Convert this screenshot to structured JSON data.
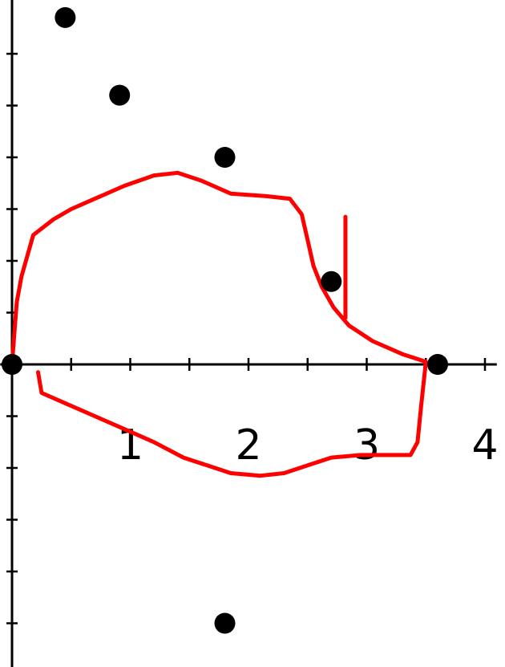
{
  "chart_data": {
    "type": "scatter",
    "title": "",
    "xlabel": "",
    "ylabel": "",
    "xlim": [
      -0.1,
      4.1
    ],
    "ylim": [
      -5.3,
      6.95
    ],
    "grid": false,
    "x_ticks": [
      1,
      2,
      3,
      4
    ],
    "x_tick_labels": [
      "1",
      "2",
      "3",
      "4"
    ],
    "x_minor_step": 0.5,
    "y_tick_step": 1,
    "points_color": "#000000",
    "points": [
      {
        "x": 0,
        "y": 0
      },
      {
        "x": 0.45,
        "y": 6.7
      },
      {
        "x": 0.91,
        "y": 5.2
      },
      {
        "x": 1.8,
        "y": 4.0
      },
      {
        "x": 2.7,
        "y": 1.6
      },
      {
        "x": 3.6,
        "y": 0
      },
      {
        "x": 1.8,
        "y": -5.0
      }
    ],
    "annotation_color": "#ff0000",
    "annotation_loop": [
      [
        0.0,
        0.0
      ],
      [
        0.02,
        0.6
      ],
      [
        0.04,
        1.2
      ],
      [
        0.08,
        1.7
      ],
      [
        0.18,
        2.5
      ],
      [
        0.35,
        2.8
      ],
      [
        0.5,
        3.0
      ],
      [
        0.7,
        3.2
      ],
      [
        0.95,
        3.45
      ],
      [
        1.2,
        3.65
      ],
      [
        1.4,
        3.7
      ],
      [
        1.6,
        3.55
      ],
      [
        1.85,
        3.3
      ],
      [
        2.15,
        3.25
      ],
      [
        2.35,
        3.2
      ],
      [
        2.45,
        2.9
      ],
      [
        2.5,
        2.4
      ],
      [
        2.55,
        1.9
      ],
      [
        2.62,
        1.5
      ],
      [
        2.72,
        1.1
      ],
      [
        2.85,
        0.75
      ],
      [
        3.05,
        0.45
      ],
      [
        3.3,
        0.2
      ],
      [
        3.5,
        0.05
      ],
      [
        3.46,
        -0.8
      ],
      [
        3.43,
        -1.5
      ],
      [
        3.37,
        -1.75
      ],
      [
        3.2,
        -1.75
      ],
      [
        2.95,
        -1.75
      ],
      [
        2.7,
        -1.8
      ],
      [
        2.5,
        -1.95
      ],
      [
        2.3,
        -2.1
      ],
      [
        2.1,
        -2.15
      ],
      [
        1.85,
        -2.1
      ],
      [
        1.65,
        -1.95
      ],
      [
        1.45,
        -1.8
      ],
      [
        1.2,
        -1.5
      ],
      [
        0.95,
        -1.25
      ],
      [
        0.7,
        -1.0
      ],
      [
        0.45,
        -0.75
      ],
      [
        0.25,
        -0.55
      ],
      [
        0.22,
        -0.15
      ]
    ],
    "annotation_stroke": [
      [
        2.82,
        2.85
      ],
      [
        2.82,
        0.9
      ]
    ]
  }
}
